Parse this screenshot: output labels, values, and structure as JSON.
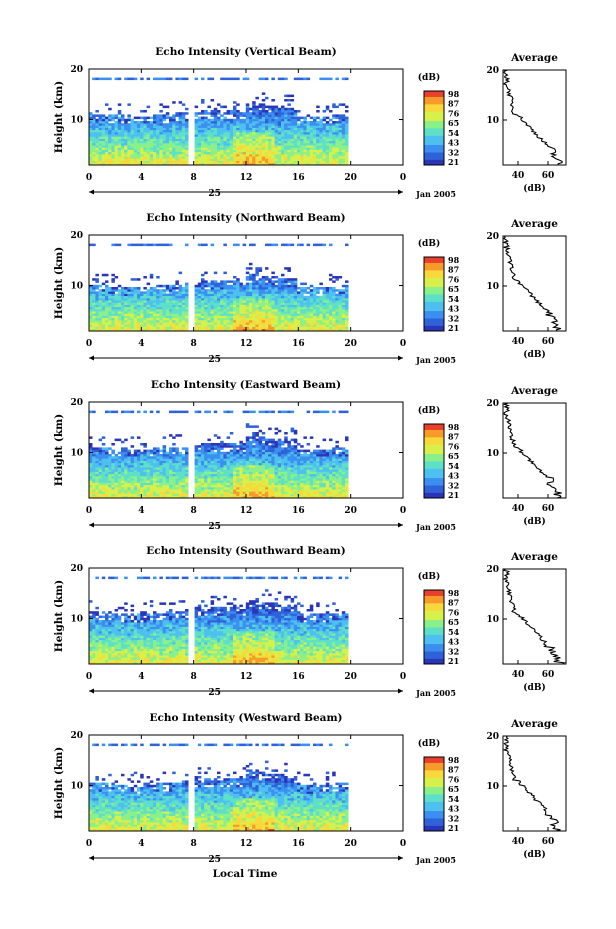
{
  "chart_data": [
    {
      "type": "heatmap",
      "title": "Echo Intensity (Vertical Beam)",
      "ylabel": "Height (km)",
      "x_ticks": [
        "0",
        "4",
        "8",
        "12",
        "16",
        "20",
        "0"
      ],
      "y_ticks": [
        "20",
        "10"
      ],
      "xlim": [
        0,
        24
      ],
      "ylim": [
        1,
        20
      ],
      "day_label": "25",
      "date_label": "Jan 2005",
      "data_start_hour": 0,
      "data_end_hour": 19.6,
      "data_gap_hour": 7.8,
      "top_layer_km": [
        17.5,
        18.5
      ],
      "cloud_top_km": 11.5,
      "colorbar": {
        "unit": "(dB)",
        "ticks": [
          "98",
          "87",
          "76",
          "65",
          "54",
          "43",
          "32",
          "21"
        ]
      },
      "profile": {
        "title": "Average",
        "ylim": [
          1,
          20
        ],
        "xlim": [
          30,
          72
        ],
        "x_ticks": [
          "40",
          "60"
        ],
        "y_ticks": [
          "20",
          "10"
        ],
        "xlabel": "(dB)"
      }
    },
    {
      "type": "heatmap",
      "title": "Echo Intensity (Northward Beam)",
      "ylabel": "Height (km)",
      "x_ticks": [
        "0",
        "4",
        "8",
        "12",
        "16",
        "20",
        "0"
      ],
      "y_ticks": [
        "20",
        "10"
      ],
      "xlim": [
        0,
        24
      ],
      "ylim": [
        1,
        20
      ],
      "day_label": "25",
      "date_label": "Jan 2005",
      "data_start_hour": 0,
      "data_end_hour": 19.6,
      "data_gap_hour": 7.8,
      "top_layer_km": [
        17.8,
        18.2
      ],
      "cloud_top_km": 10.5,
      "colorbar": {
        "unit": "(dB)",
        "ticks": [
          "98",
          "87",
          "76",
          "65",
          "54",
          "43",
          "32",
          "21"
        ]
      },
      "profile": {
        "title": "Average",
        "ylim": [
          1,
          20
        ],
        "xlim": [
          30,
          72
        ],
        "x_ticks": [
          "40",
          "60"
        ],
        "y_ticks": [
          "20",
          "10"
        ],
        "xlabel": "(dB)"
      }
    },
    {
      "type": "heatmap",
      "title": "Echo Intensity (Eastward Beam)",
      "ylabel": "Height (km)",
      "x_ticks": [
        "0",
        "4",
        "8",
        "12",
        "16",
        "20",
        "0"
      ],
      "y_ticks": [
        "20",
        "10"
      ],
      "xlim": [
        0,
        24
      ],
      "ylim": [
        1,
        20
      ],
      "day_label": "25",
      "date_label": "Jan 2005",
      "data_start_hour": 0,
      "data_end_hour": 19.6,
      "data_gap_hour": 7.8,
      "top_layer_km": [
        18.0,
        18.0
      ],
      "cloud_top_km": 11.5,
      "colorbar": {
        "unit": "(dB)",
        "ticks": [
          "98",
          "87",
          "76",
          "65",
          "54",
          "43",
          "32",
          "21"
        ]
      },
      "profile": {
        "title": "Average",
        "ylim": [
          1,
          20
        ],
        "xlim": [
          30,
          72
        ],
        "x_ticks": [
          "40",
          "60"
        ],
        "y_ticks": [
          "20",
          "10"
        ],
        "xlabel": "(dB)"
      }
    },
    {
      "type": "heatmap",
      "title": "Echo Intensity (Southward Beam)",
      "ylabel": "Height (km)",
      "x_ticks": [
        "0",
        "4",
        "8",
        "12",
        "16",
        "20",
        "0"
      ],
      "y_ticks": [
        "20",
        "10"
      ],
      "xlim": [
        0,
        24
      ],
      "ylim": [
        1,
        20
      ],
      "day_label": "25",
      "date_label": "Jan 2005",
      "data_start_hour": 0,
      "data_end_hour": 19.6,
      "data_gap_hour": 7.8,
      "top_layer_km": [
        18.0,
        18.0
      ],
      "cloud_top_km": 11.8,
      "colorbar": {
        "unit": "(dB)",
        "ticks": [
          "98",
          "87",
          "76",
          "65",
          "54",
          "43",
          "32",
          "21"
        ]
      },
      "profile": {
        "title": "Average",
        "ylim": [
          1,
          20
        ],
        "xlim": [
          30,
          72
        ],
        "x_ticks": [
          "40",
          "60"
        ],
        "y_ticks": [
          "20",
          "10"
        ],
        "xlabel": "(dB)"
      }
    },
    {
      "type": "heatmap",
      "title": "Echo Intensity (Westward Beam)",
      "ylabel": "Height (km)",
      "x_ticks": [
        "0",
        "4",
        "8",
        "12",
        "16",
        "20",
        "0"
      ],
      "y_ticks": [
        "20",
        "10"
      ],
      "xlim": [
        0,
        24
      ],
      "ylim": [
        1,
        20
      ],
      "day_label": "25",
      "date_label": "Jan 2005",
      "data_start_hour": 0,
      "data_end_hour": 19.6,
      "data_gap_hour": 7.8,
      "top_layer_km": [
        17.8,
        18.2
      ],
      "cloud_top_km": 11.0,
      "colorbar": {
        "unit": "(dB)",
        "ticks": [
          "98",
          "87",
          "76",
          "65",
          "54",
          "43",
          "32",
          "21"
        ]
      },
      "profile": {
        "title": "Average",
        "ylim": [
          1,
          20
        ],
        "xlim": [
          30,
          72
        ],
        "x_ticks": [
          "40",
          "60"
        ],
        "y_ticks": [
          "20",
          "10"
        ],
        "xlabel": "(dB)"
      }
    }
  ],
  "footer": {
    "xlabel": "Local Time"
  },
  "colormap": [
    "#2a35b8",
    "#2f62d8",
    "#3b8ff0",
    "#4ec0f0",
    "#5ee0c8",
    "#8af08a",
    "#d8f04a",
    "#f8d83a",
    "#f89a2a",
    "#e8402a"
  ]
}
